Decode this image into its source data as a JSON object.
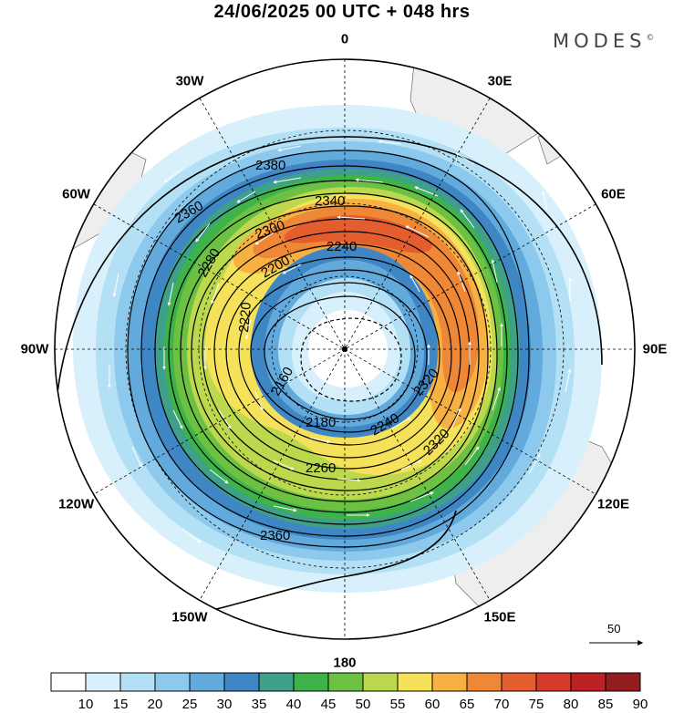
{
  "title": "24/06/2025  00 UTC  + 048 hrs",
  "brand": "MODES",
  "brand_mark": "©",
  "projection": "south-polar-stereographic",
  "longitude_labels": [
    {
      "id": "0",
      "text": "0",
      "angle": 0
    },
    {
      "id": "30E",
      "text": "30E",
      "angle": 30
    },
    {
      "id": "60E",
      "text": "60E",
      "angle": 60
    },
    {
      "id": "90E",
      "text": "90E",
      "angle": 90
    },
    {
      "id": "120E",
      "text": "120E",
      "angle": 120
    },
    {
      "id": "150E",
      "text": "150E",
      "angle": 150
    },
    {
      "id": "180",
      "text": "180",
      "angle": 180
    },
    {
      "id": "150W",
      "text": "150W",
      "angle": 210
    },
    {
      "id": "120W",
      "text": "120W",
      "angle": 240
    },
    {
      "id": "90W",
      "text": "90W",
      "angle": 270
    },
    {
      "id": "60W",
      "text": "60W",
      "angle": 300
    },
    {
      "id": "30W",
      "text": "30W",
      "angle": 330
    }
  ],
  "contour_labels": [
    "2380",
    "2340",
    "2360",
    "2300",
    "2240",
    "2200",
    "2280",
    "2220",
    "2160",
    "2180",
    "2320",
    "2260",
    "2240",
    "2320",
    "2360"
  ],
  "vector_reference": "50",
  "colorbar": {
    "levels": [
      "10",
      "15",
      "20",
      "25",
      "30",
      "35",
      "40",
      "45",
      "50",
      "55",
      "60",
      "65",
      "70",
      "75",
      "80",
      "85",
      "90"
    ],
    "colors": [
      "#ffffff",
      "#d7f0fb",
      "#b3e0f5",
      "#8cc9ec",
      "#62a9dc",
      "#3f86c4",
      "#3fa08a",
      "#3db34a",
      "#6cc042",
      "#bcd94e",
      "#f5e25a",
      "#f6b142",
      "#ee8736",
      "#e35d2e",
      "#d53a2a",
      "#bd2124",
      "#931c1f"
    ]
  },
  "colors": {
    "land": "#eeeeee",
    "coast": "#555555",
    "contour": "#000000",
    "grid": "#000000"
  }
}
